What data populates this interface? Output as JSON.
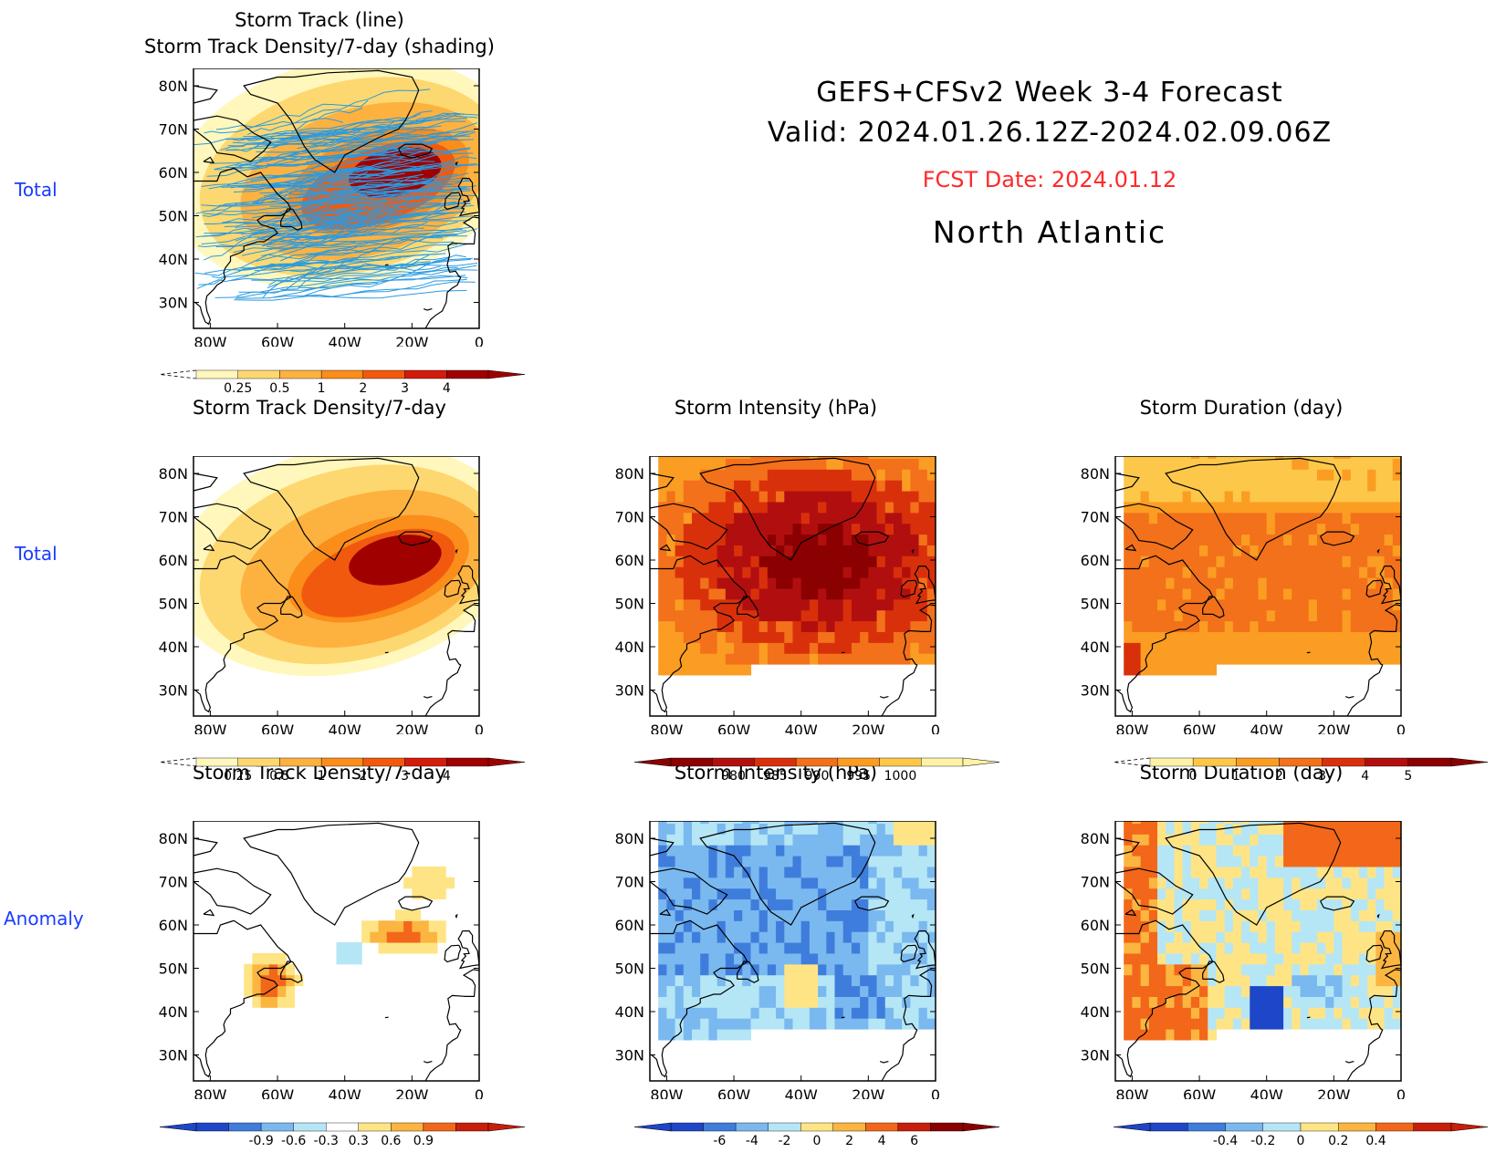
{
  "header": {
    "title_line1": "GEFS+CFSv2 Week 3-4 Forecast",
    "title_line2": "Valid: 2024.01.26.12Z-2024.02.09.06Z",
    "fcst_date": "FCST Date: 2024.01.12",
    "region": "North Atlantic",
    "fcst_color": "#ff2a2a"
  },
  "row_labels": {
    "row1": "Total",
    "row2": "Total",
    "row3": "Anomaly"
  },
  "axis": {
    "lat_labels": [
      "80N",
      "70N",
      "60N",
      "50N",
      "40N",
      "30N"
    ],
    "lon_labels": [
      "80W",
      "60W",
      "40W",
      "20W",
      "0"
    ]
  },
  "panels": {
    "p1": {
      "title": "Storm Track (line)\nStorm Track Density/7-day (shading)"
    },
    "p2": {
      "title": "Storm Track Density/7-day"
    },
    "p3": {
      "title": "Storm Intensity (hPa)"
    },
    "p4": {
      "title": "Storm Duration (day)"
    },
    "p5": {
      "title": "Storm Track Density/7-day"
    },
    "p6": {
      "title": "Storm Intensity (hPa)"
    },
    "p7": {
      "title": "Storm Duration (day)"
    }
  },
  "colorbars": {
    "density": {
      "colors": [
        "#fff7bc",
        "#fdd870",
        "#fdb240",
        "#fb8d1a",
        "#f15a0e",
        "#d31c0c",
        "#a00000"
      ],
      "labels": [
        "0.25",
        "0.5",
        "1",
        "2",
        "3",
        "4"
      ]
    },
    "intensity": {
      "colors": [
        "#8b0000",
        "#b10f0f",
        "#d9300c",
        "#f2711a",
        "#fb9d22",
        "#fdc74a",
        "#fff2a8"
      ],
      "labels": [
        "980",
        "985",
        "990",
        "995",
        "1000"
      ]
    },
    "duration": {
      "colors": [
        "#fff2a8",
        "#fdc74a",
        "#fb9d22",
        "#f2711a",
        "#d9300c",
        "#b10f0f",
        "#8b0000"
      ],
      "labels": [
        "0",
        "1",
        "2",
        "3",
        "4",
        "5"
      ]
    },
    "anom_density": {
      "colors": [
        "#1e46c8",
        "#3f7ddc",
        "#7ab8f0",
        "#b5e6f5",
        "#ffffff",
        "#ffe485",
        "#fbb540",
        "#f2671a",
        "#c81e0c"
      ],
      "labels": [
        "-0.9",
        "-0.6",
        "-0.3",
        "0.3",
        "0.6",
        "0.9"
      ]
    },
    "anom_intensity": {
      "colors": [
        "#1e46c8",
        "#3f7ddc",
        "#7ab8f0",
        "#b5e6f5",
        "#ffe485",
        "#fbb540",
        "#f2671a",
        "#c81e0c",
        "#8b0000"
      ],
      "labels": [
        "-6",
        "-4",
        "-2",
        "0",
        "2",
        "4",
        "6"
      ]
    },
    "anom_duration": {
      "colors": [
        "#1e46c8",
        "#3f7ddc",
        "#7ab8f0",
        "#b5e6f5",
        "#ffe485",
        "#fbb540",
        "#f2671a",
        "#c81e0c"
      ],
      "labels": [
        "-0.4",
        "-0.2",
        "0",
        "0.2",
        "0.4"
      ]
    }
  },
  "colors": {
    "row_label": "#1a3cff",
    "track_line": "#2b9ae0"
  }
}
